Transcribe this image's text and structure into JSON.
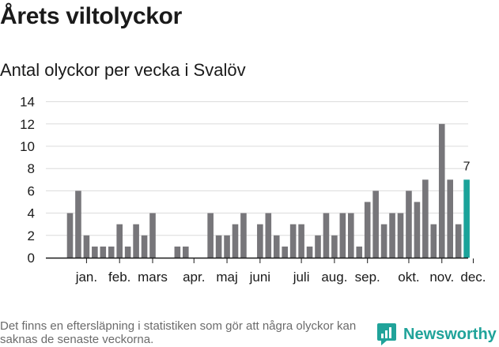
{
  "header": {
    "title": "Årets viltolyckor",
    "subtitle": "Antal olyckor per vecka i Svalöv"
  },
  "footer": {
    "note": "Det finns en eftersläpning i statistiken som gör att några olyckor kan saknas de senaste veckorna.",
    "brand": "Newsworthy"
  },
  "colors": {
    "bar": "#77767a",
    "highlight": "#1aa39a",
    "grid": "#dcdcdc",
    "axis": "#1a1a1a",
    "brand": "#20a39a"
  },
  "chart_data": {
    "type": "bar",
    "title": "Antal olyckor per vecka i Svalöv",
    "xlabel": "",
    "ylabel": "",
    "ylim": [
      0,
      14
    ],
    "yticks": [
      0,
      2,
      4,
      6,
      8,
      10,
      12,
      14
    ],
    "grid": true,
    "weeks": [
      1,
      2,
      3,
      4,
      5,
      6,
      7,
      8,
      9,
      10,
      11,
      12,
      13,
      14,
      15,
      16,
      17,
      18,
      19,
      20,
      21,
      22,
      23,
      24,
      25,
      26,
      27,
      28,
      29,
      30,
      31,
      32,
      33,
      34,
      35,
      36,
      37,
      38,
      39,
      40,
      41,
      42,
      43,
      44,
      45,
      46,
      47,
      48,
      49,
      50
    ],
    "values": [
      4,
      6,
      2,
      1,
      1,
      1,
      3,
      1,
      3,
      2,
      4,
      0,
      0,
      1,
      1,
      0,
      0,
      4,
      2,
      2,
      3,
      4,
      0,
      3,
      4,
      2,
      1,
      3,
      3,
      1,
      2,
      4,
      2,
      4,
      4,
      1,
      5,
      6,
      3,
      4,
      4,
      6,
      5,
      7,
      3,
      12,
      7,
      3,
      7,
      0
    ],
    "highlight": {
      "week": 49,
      "value": 7,
      "label": "7"
    },
    "month_labels": [
      {
        "label": "jan.",
        "week": 3
      },
      {
        "label": "feb.",
        "week": 7
      },
      {
        "label": "mars",
        "week": 11
      },
      {
        "label": "apr.",
        "week": 16
      },
      {
        "label": "maj",
        "week": 20
      },
      {
        "label": "juni",
        "week": 24
      },
      {
        "label": "juli",
        "week": 29
      },
      {
        "label": "aug.",
        "week": 33
      },
      {
        "label": "sep.",
        "week": 37
      },
      {
        "label": "okt.",
        "week": 42
      },
      {
        "label": "nov.",
        "week": 46
      },
      {
        "label": "dec.",
        "week": 49.8
      }
    ]
  }
}
